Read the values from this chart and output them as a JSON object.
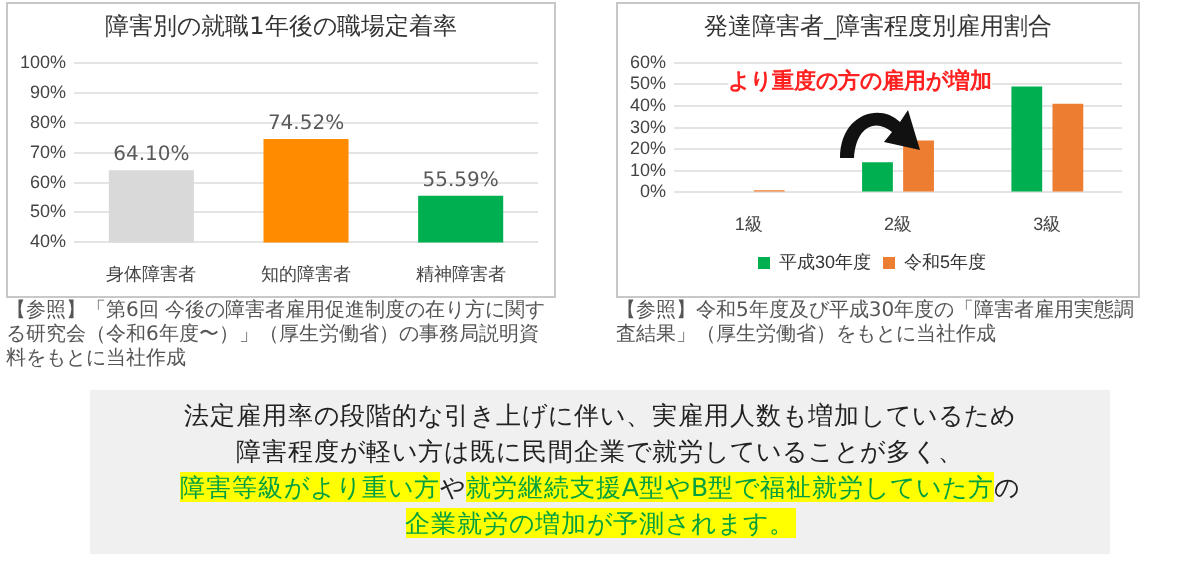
{
  "chart_data": [
    {
      "type": "bar",
      "title": "障害別の就職1年後の職場定着率",
      "categories": [
        "身体障害者",
        "知的障害者",
        "精神障害者"
      ],
      "values": [
        64.1,
        74.52,
        55.59
      ],
      "colors": [
        "#d9d9d9",
        "#ff8c00",
        "#00b050"
      ],
      "value_labels": [
        "64.10%",
        "74.52%",
        "55.59%"
      ],
      "ylim": [
        40,
        100
      ],
      "yticks": [
        {
          "value": 40,
          "label": "40%"
        },
        {
          "value": 50,
          "label": "50%"
        },
        {
          "value": 60,
          "label": "60%"
        },
        {
          "value": 70,
          "label": "70%"
        },
        {
          "value": 80,
          "label": "80%"
        },
        {
          "value": 90,
          "label": "90%"
        },
        {
          "value": 100,
          "label": "100%"
        }
      ],
      "grid": "y",
      "legend": false,
      "annotations": [
        "【参照】「第6回 今後の障害者雇用促進制度の在り方に関する研究会（令和6年度〜）」（厚生労働省）の事務局説明資料をもとに当社作成"
      ]
    },
    {
      "type": "bar",
      "title": "発達障害者_障害程度別雇用割合",
      "categories": [
        "1級",
        "2級",
        "3級"
      ],
      "series": [
        {
          "name": "平成30年度",
          "color": "#00b050",
          "values": [
            null,
            14,
            49
          ]
        },
        {
          "name": "令和5年度",
          "color": "#ed7d31",
          "values": [
            1,
            24,
            41
          ]
        }
      ],
      "ylim": [
        0,
        60
      ],
      "yticks": [
        {
          "value": 0,
          "label": "0%"
        },
        {
          "value": 10,
          "label": "10%"
        },
        {
          "value": 20,
          "label": "20%"
        },
        {
          "value": 30,
          "label": "30%"
        },
        {
          "value": 40,
          "label": "40%"
        },
        {
          "value": 50,
          "label": "50%"
        },
        {
          "value": 60,
          "label": "60%"
        }
      ],
      "grid": "y",
      "legend": "bottom",
      "annotations": [
        "より重度の方の雇用が増加",
        "【参照】令和5年度及び平成30年度の「障害者雇用実態調査結果」（厚生労働省）をもとに当社作成"
      ]
    },
    {
      "type": "other",
      "annotations": [
        "法定雇用率の段階的な引き上げに伴い、実雇用人数も増加しているため",
        "障害程度が軽い方は既に民間企業で就労していることが多く、",
        "障害等級がより重い方",
        "や",
        "就労継続支援A型やB型で福祉就労していた方",
        "の",
        "企業就労の増加が予測されます。"
      ]
    }
  ]
}
